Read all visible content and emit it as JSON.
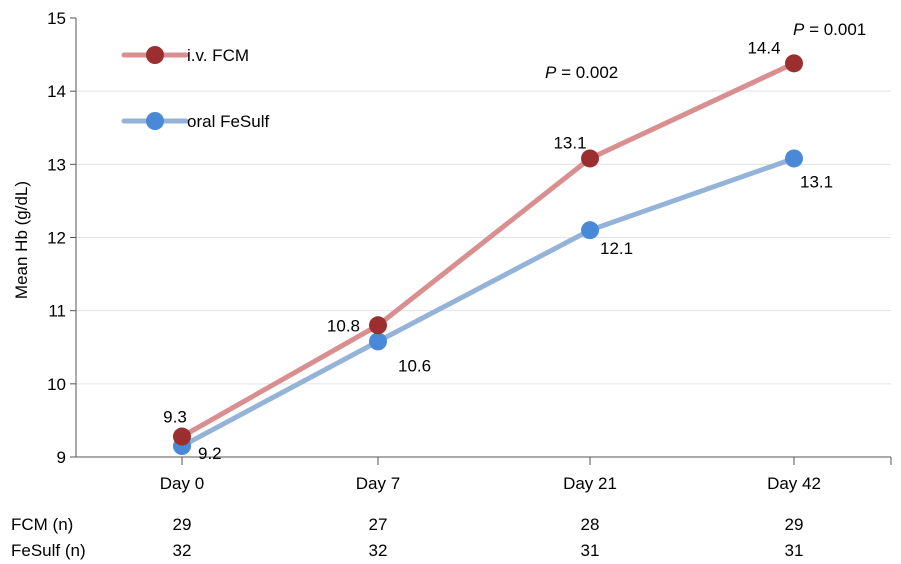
{
  "chart_data": {
    "type": "line",
    "title": "",
    "xlabel": "",
    "ylabel": "Mean Hb (g/dL)",
    "ylim": [
      9,
      15
    ],
    "yticks": [
      9,
      10,
      11,
      12,
      13,
      14,
      15
    ],
    "categories": [
      "Day 0",
      "Day 7",
      "Day 21",
      "Day 42"
    ],
    "grid": "horizontal",
    "legend_position": "top-left",
    "series": [
      {
        "name": "i.v. FCM",
        "color": "#d98f90",
        "marker_color": "#9b2f2f",
        "values": [
          9.28,
          10.8,
          13.08,
          14.38
        ],
        "labels": [
          "9.3",
          "10.8",
          "13.1",
          "14.4"
        ]
      },
      {
        "name": "oral FeSulf",
        "color": "#94b3d9",
        "marker_color": "#4a89d8",
        "values": [
          9.15,
          10.58,
          12.1,
          13.08
        ],
        "labels": [
          "9.2",
          "10.6",
          "12.1",
          "13.1"
        ]
      }
    ],
    "annotations": [
      {
        "italic": "P",
        "text": " = 0.002",
        "category": "Day 21"
      },
      {
        "italic": "P",
        "text": " = 0.001",
        "category": "Day 42"
      }
    ],
    "table": {
      "rows": [
        {
          "label": "FCM (n)",
          "values": [
            "29",
            "27",
            "28",
            "29"
          ]
        },
        {
          "label": "FeSulf (n)",
          "values": [
            "32",
            "32",
            "31",
            "31"
          ]
        }
      ]
    }
  }
}
